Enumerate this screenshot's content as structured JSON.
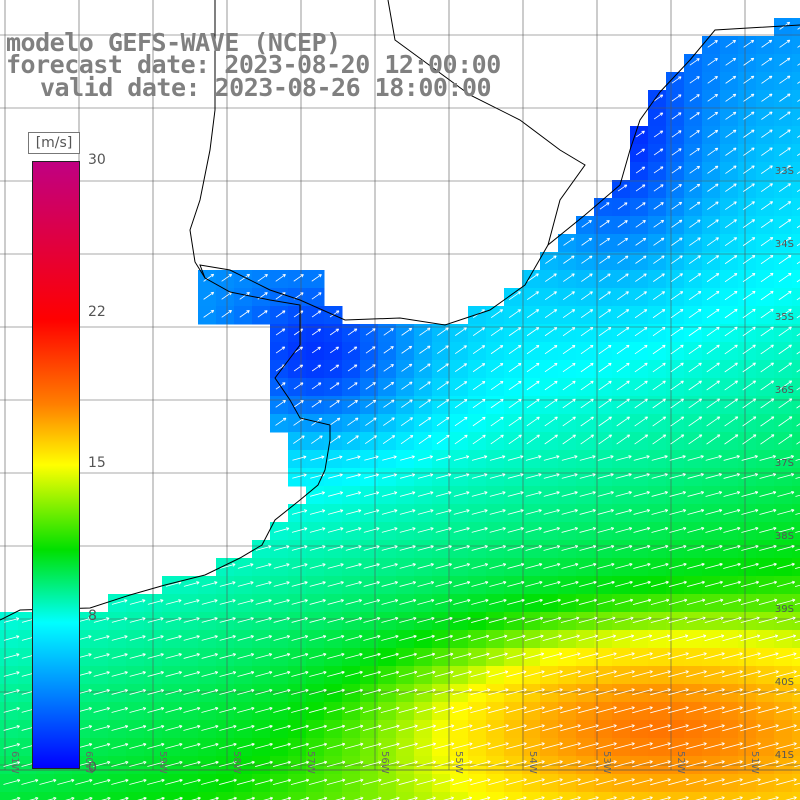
{
  "titles": {
    "model": "modelo GEFS-WAVE (NCEP)",
    "forecast": "forecast date: 2023-08-20 12:00:00",
    "valid": "valid date: 2023-08-26 18:00:00"
  },
  "colorbar": {
    "unit": "[m/s]",
    "ticks": [
      "30",
      "22",
      "15",
      "8",
      "0"
    ],
    "colors": [
      "#c00082",
      "#ff0000",
      "#ff7f00",
      "#ffff00",
      "#00e000",
      "#00ffff",
      "#0080ff",
      "#0000ff"
    ]
  },
  "map": {
    "land_color": "#ffffff",
    "coastline_color": "#000000",
    "grid_color": "#555555",
    "arrow_color": "#ffffff",
    "lon_labels": [
      "61W",
      "60W",
      "59W",
      "58W",
      "57W",
      "56W",
      "55W",
      "54W",
      "53W",
      "52W",
      "51W"
    ],
    "lat_labels": [
      "33S",
      "34S",
      "35S",
      "36S",
      "37S",
      "38S",
      "39S",
      "40S",
      "41S"
    ],
    "wind_direction": "northeast to east-northeast arrows over the ocean"
  }
}
